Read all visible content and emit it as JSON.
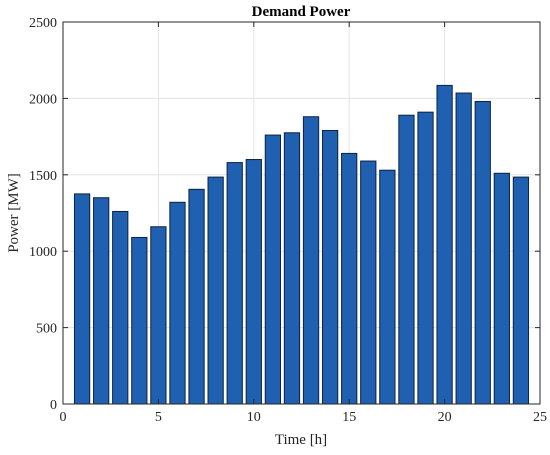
{
  "chart_data": {
    "type": "bar",
    "title": "Demand Power",
    "xlabel": "Time [h]",
    "ylabel": "Power [MW]",
    "x": [
      1,
      2,
      3,
      4,
      5,
      6,
      7,
      8,
      9,
      10,
      11,
      12,
      13,
      14,
      15,
      16,
      17,
      18,
      19,
      20,
      21,
      22,
      23,
      24
    ],
    "values": [
      1375,
      1350,
      1260,
      1090,
      1160,
      1320,
      1405,
      1485,
      1580,
      1600,
      1760,
      1775,
      1880,
      1790,
      1640,
      1590,
      1530,
      1890,
      1910,
      2085,
      2035,
      1980,
      1510,
      1485
    ],
    "xlim": [
      0,
      25
    ],
    "ylim": [
      0,
      2500
    ],
    "xticks": [
      "0",
      "5",
      "10",
      "15",
      "20",
      "25"
    ],
    "yticks": [
      "0",
      "500",
      "1000",
      "1500",
      "2000",
      "2500"
    ],
    "grid": true,
    "bar_color": "#1f60b0",
    "bar_edge_color": "#0d2240"
  }
}
